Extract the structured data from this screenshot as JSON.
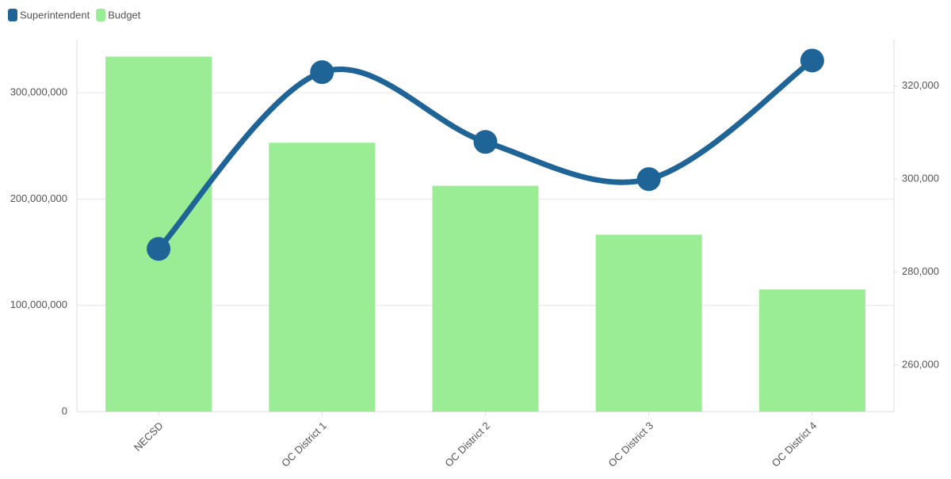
{
  "chart_data": {
    "type": "bar-line",
    "categories": [
      "NECSD",
      "OC District 1",
      "OC District 2",
      "OC District 3",
      "OC District 4"
    ],
    "series": [
      {
        "name": "Superintendent",
        "type": "line",
        "axis": "y2",
        "color": "#1f6497",
        "values": [
          285000,
          323000,
          308000,
          300000,
          325500
        ]
      },
      {
        "name": "Budget",
        "type": "bar",
        "color": "#9aed95",
        "values": [
          334000000,
          253000000,
          212500000,
          166500000,
          115000000
        ]
      }
    ],
    "ylim": [
      0,
      350000000
    ],
    "yticks": [
      0,
      {
        "value": 100000000,
        "label": "100,000,000"
      },
      {
        "value": 200000000,
        "label": "200,000,000"
      },
      {
        "value": 300000000,
        "label": "300,000,000"
      }
    ],
    "y2lim": [
      250000,
      330000
    ],
    "y2ticks": [
      {
        "value": 260000,
        "label": "260,000"
      },
      {
        "value": 280000,
        "label": "280,000"
      },
      {
        "value": 300000,
        "label": "300,000"
      },
      {
        "value": 320000,
        "label": "320,000"
      }
    ],
    "grid": true,
    "legend": "top-left"
  }
}
